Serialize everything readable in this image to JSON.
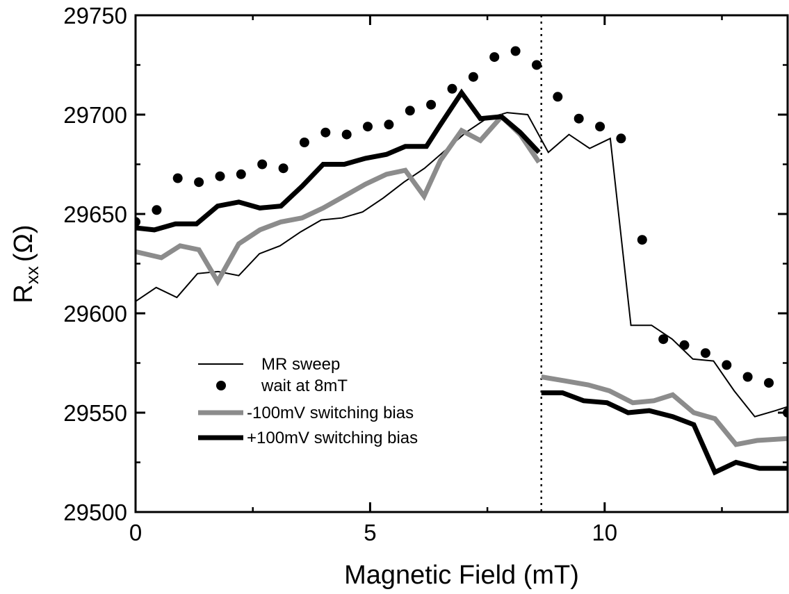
{
  "chart_data": {
    "type": "line",
    "xlabel": "Magnetic Field (mT)",
    "ylabel": "R",
    "ylabel_subscript": "xx",
    "ylabel_unit": "(Ω)",
    "xlim": [
      0,
      13.9
    ],
    "ylim": [
      29500,
      29750
    ],
    "x_ticks": [
      0,
      5,
      10
    ],
    "x_tick_labels": [
      "0",
      "5",
      "10"
    ],
    "y_ticks": [
      29500,
      29550,
      29600,
      29650,
      29700,
      29750
    ],
    "y_tick_labels": [
      "29500",
      "29550",
      "29600",
      "29650",
      "29700",
      "29750"
    ],
    "grid": false,
    "legend_placement": "lower-left",
    "reference_line": {
      "x": 8.65,
      "style": "dotted"
    },
    "series": [
      {
        "name": "MR sweep",
        "style": "thin-line",
        "color": "#000000",
        "x": [
          0,
          0.44,
          0.88,
          1.32,
          1.76,
          2.2,
          2.64,
          3.08,
          3.52,
          3.96,
          4.4,
          4.84,
          5.28,
          5.72,
          6.16,
          6.6,
          7.04,
          7.48,
          7.92,
          8.36,
          8.8,
          9.24,
          9.68,
          10.12,
          10.56,
          11.0,
          11.44,
          11.88,
          12.32,
          12.76,
          13.2,
          13.64,
          13.9
        ],
        "y": [
          29606,
          29613,
          29608,
          29620,
          29621,
          29619,
          29630,
          29634,
          29641,
          29647,
          29648,
          29651,
          29658,
          29666,
          29673,
          29682,
          29691,
          29698,
          29701,
          29700,
          29681,
          29690,
          29683,
          29688,
          29594,
          29594,
          29587,
          29577,
          29576,
          29561,
          29548,
          29551,
          29553
        ]
      },
      {
        "name": "wait at 8mT",
        "style": "markers",
        "color": "#000000",
        "x": [
          0,
          0.45,
          0.9,
          1.35,
          1.8,
          2.25,
          2.7,
          3.15,
          3.6,
          4.05,
          4.5,
          4.95,
          5.4,
          5.85,
          6.3,
          6.75,
          7.2,
          7.65,
          8.1,
          8.55,
          9.0,
          9.45,
          9.9,
          10.35,
          10.8,
          11.25,
          11.7,
          12.15,
          12.6,
          13.05,
          13.5,
          13.9
        ],
        "y": [
          29646,
          29652,
          29668,
          29666,
          29669,
          29670,
          29675,
          29673,
          29686,
          29691,
          29690,
          29694,
          29695,
          29702,
          29705,
          29713,
          29719,
          29729,
          29732,
          29725,
          29709,
          29698,
          29694,
          29688,
          29637,
          29587,
          29584,
          29580,
          29574,
          29568,
          29565,
          29550
        ]
      },
      {
        "name": "-100mV switching bias",
        "style": "thick-line",
        "color": "#8c8c8c",
        "segments": [
          {
            "x": [
              0,
              0.55,
              0.95,
              1.35,
              1.75,
              2.2,
              2.65,
              3.1,
              3.55,
              4.0,
              4.45,
              4.9,
              5.35,
              5.75,
              6.15,
              6.5,
              6.95,
              7.35,
              7.8,
              8.2,
              8.6
            ],
            "y": [
              29631,
              29628,
              29634,
              29632,
              29616,
              29635,
              29642,
              29646,
              29648,
              29653,
              29659,
              29665,
              29670,
              29672,
              29659,
              29677,
              29692,
              29687,
              29699,
              29690,
              29676
            ]
          },
          {
            "x": [
              8.65,
              9.15,
              9.65,
              10.1,
              10.6,
              11.05,
              11.45,
              11.9,
              12.35,
              12.8,
              13.25,
              13.9
            ],
            "y": [
              29568,
              29566,
              29564,
              29561,
              29555,
              29556,
              29559,
              29550,
              29547,
              29534,
              29536,
              29537
            ]
          }
        ]
      },
      {
        "name": "+100mV switching bias",
        "style": "thick-line",
        "color": "#000000",
        "segments": [
          {
            "x": [
              0,
              0.4,
              0.85,
              1.3,
              1.75,
              2.2,
              2.65,
              3.1,
              3.55,
              4.0,
              4.45,
              4.9,
              5.35,
              5.75,
              6.2,
              6.5,
              6.95,
              7.35,
              7.8,
              8.2,
              8.6
            ],
            "y": [
              29643,
              29642,
              29645,
              29645,
              29654,
              29656,
              29653,
              29654,
              29664,
              29675,
              29675,
              29678,
              29680,
              29684,
              29684,
              29695,
              29711,
              29698,
              29699,
              29691,
              29681
            ]
          },
          {
            "x": [
              8.65,
              9.1,
              9.55,
              10.05,
              10.5,
              10.95,
              11.45,
              11.9,
              12.35,
              12.8,
              13.3,
              13.9
            ],
            "y": [
              29560,
              29560,
              29556,
              29555,
              29550,
              29551,
              29548,
              29544,
              29520,
              29525,
              29522,
              29522
            ]
          }
        ]
      }
    ]
  }
}
